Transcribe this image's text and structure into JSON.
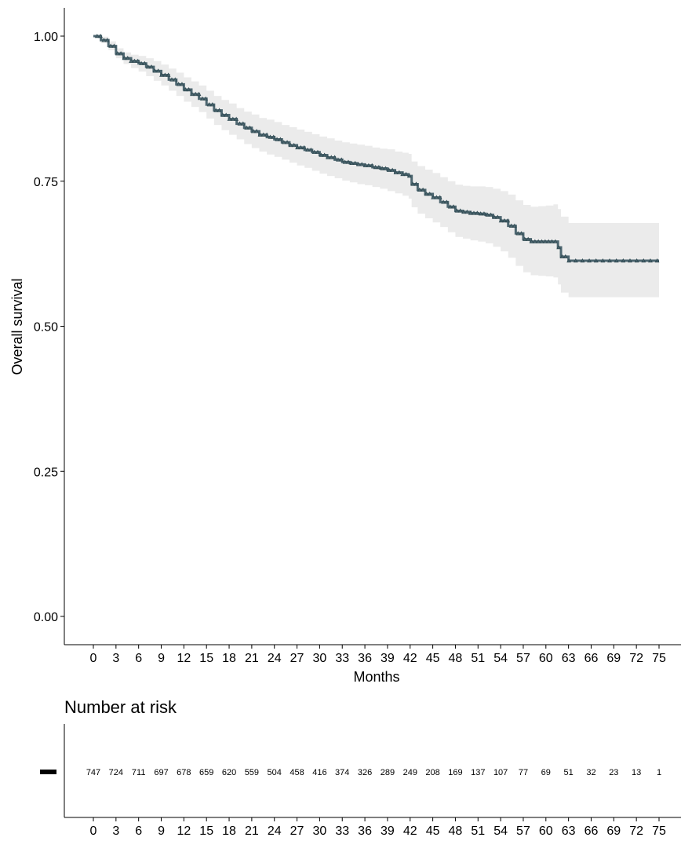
{
  "chart_data": {
    "type": "line",
    "subtype": "kaplan-meier",
    "xlabel": "Months",
    "ylabel": "Overall survival",
    "xlim": [
      0,
      75
    ],
    "ylim": [
      0,
      1
    ],
    "x_ticks": [
      "0",
      "3",
      "6",
      "9",
      "12",
      "15",
      "18",
      "21",
      "24",
      "27",
      "30",
      "33",
      "36",
      "39",
      "42",
      "45",
      "48",
      "51",
      "54",
      "57",
      "60",
      "63",
      "66",
      "69",
      "72",
      "75"
    ],
    "y_ticks": [
      "0.00",
      "0.25",
      "0.50",
      "0.75",
      "1.00"
    ],
    "grid": false,
    "censor_marker": "triangle",
    "colors": {
      "line": "#4d6670",
      "ribbon": "#ebebeb",
      "axis": "#000000"
    },
    "survival": {
      "x": [
        0,
        1,
        2,
        3,
        4,
        5,
        6,
        7,
        8,
        9,
        10,
        11,
        12,
        13,
        14,
        15,
        16,
        17,
        18,
        19,
        20,
        21,
        22,
        23,
        24,
        25,
        26,
        27,
        28,
        29,
        30,
        31,
        32,
        33,
        34,
        35,
        36,
        37,
        38,
        39,
        40,
        41,
        41.8,
        42.2,
        43,
        44,
        45,
        46,
        47,
        48,
        49,
        50,
        51,
        52,
        53,
        54,
        55,
        56,
        57,
        58,
        59,
        60,
        61,
        61.6,
        62,
        63,
        66,
        69,
        72,
        75
      ],
      "y": [
        1.0,
        0.993,
        0.983,
        0.97,
        0.962,
        0.957,
        0.953,
        0.947,
        0.94,
        0.933,
        0.925,
        0.917,
        0.908,
        0.9,
        0.892,
        0.882,
        0.872,
        0.864,
        0.857,
        0.849,
        0.842,
        0.836,
        0.83,
        0.826,
        0.822,
        0.817,
        0.812,
        0.808,
        0.804,
        0.8,
        0.795,
        0.791,
        0.787,
        0.783,
        0.781,
        0.779,
        0.777,
        0.774,
        0.772,
        0.769,
        0.765,
        0.762,
        0.759,
        0.745,
        0.735,
        0.728,
        0.722,
        0.714,
        0.706,
        0.699,
        0.697,
        0.695,
        0.694,
        0.692,
        0.688,
        0.682,
        0.673,
        0.66,
        0.65,
        0.646,
        0.646,
        0.646,
        0.646,
        0.636,
        0.62,
        0.613,
        0.613,
        0.613,
        0.613,
        0.613
      ],
      "lower": [
        1.0,
        0.988,
        0.976,
        0.962,
        0.952,
        0.945,
        0.939,
        0.931,
        0.923,
        0.915,
        0.906,
        0.897,
        0.887,
        0.878,
        0.869,
        0.858,
        0.847,
        0.838,
        0.83,
        0.822,
        0.814,
        0.807,
        0.801,
        0.796,
        0.792,
        0.787,
        0.782,
        0.777,
        0.773,
        0.768,
        0.763,
        0.759,
        0.755,
        0.751,
        0.748,
        0.745,
        0.743,
        0.74,
        0.737,
        0.733,
        0.729,
        0.725,
        0.72,
        0.705,
        0.694,
        0.686,
        0.679,
        0.671,
        0.662,
        0.654,
        0.651,
        0.648,
        0.646,
        0.643,
        0.637,
        0.629,
        0.618,
        0.604,
        0.593,
        0.588,
        0.587,
        0.586,
        0.584,
        0.572,
        0.558,
        0.55,
        0.55,
        0.55,
        0.55,
        0.55
      ],
      "upper": [
        1.0,
        0.999,
        0.991,
        0.979,
        0.972,
        0.968,
        0.966,
        0.962,
        0.957,
        0.951,
        0.944,
        0.937,
        0.929,
        0.922,
        0.915,
        0.906,
        0.897,
        0.89,
        0.884,
        0.876,
        0.87,
        0.865,
        0.859,
        0.856,
        0.852,
        0.847,
        0.843,
        0.839,
        0.835,
        0.831,
        0.827,
        0.824,
        0.82,
        0.817,
        0.815,
        0.813,
        0.811,
        0.808,
        0.806,
        0.805,
        0.801,
        0.799,
        0.797,
        0.784,
        0.776,
        0.77,
        0.764,
        0.757,
        0.75,
        0.744,
        0.742,
        0.741,
        0.741,
        0.74,
        0.737,
        0.733,
        0.727,
        0.717,
        0.709,
        0.706,
        0.707,
        0.708,
        0.71,
        0.702,
        0.689,
        0.678,
        0.678,
        0.678,
        0.678,
        0.678
      ]
    },
    "risk_table": {
      "title": "Number at risk",
      "times": [
        0,
        3,
        6,
        9,
        12,
        15,
        18,
        21,
        24,
        27,
        30,
        33,
        36,
        39,
        42,
        45,
        48,
        51,
        54,
        57,
        60,
        63,
        66,
        69,
        72,
        75
      ],
      "values": [
        "747",
        "724",
        "711",
        "697",
        "678",
        "659",
        "620",
        "559",
        "504",
        "458",
        "416",
        "374",
        "326",
        "289",
        "249",
        "208",
        "169",
        "137",
        "107",
        "77",
        "69",
        "51",
        "32",
        "23",
        "13",
        "1"
      ]
    }
  }
}
